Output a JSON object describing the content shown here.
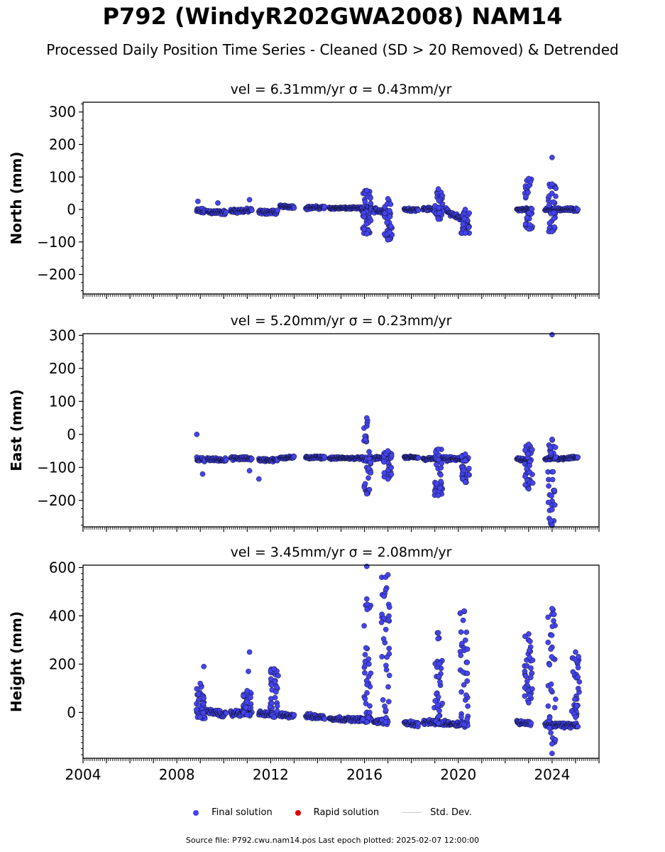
{
  "title": "P792 (WindyR202GWA2008) NAM14",
  "subtitle": "Processed Daily Position Time Series - Cleaned (SD > 20 Removed) & Detrended",
  "legend": [
    {
      "label": "Final solution",
      "color": "#4444ee"
    },
    {
      "label": "Rapid solution",
      "color": "#dd0000"
    },
    {
      "label": "Std. Dev.",
      "color": "#cccccc"
    }
  ],
  "footer": "Source file: P792.cwu.nam14.pos  Last epoch plotted: 2025-02-07 12:00:00",
  "colors": {
    "final": "#4444ee",
    "rapid": "#dd0000",
    "stddev": "#cccccc"
  },
  "chart_data": [
    {
      "type": "scatter",
      "title": "vel = 6.31mm/yr   σ = 0.43mm/yr",
      "ylabel": "North (mm)",
      "xlim": [
        2004,
        2026
      ],
      "ylim": [
        -260,
        330
      ],
      "xticks": [
        "2004",
        "2008",
        "2012",
        "2016",
        "2020",
        "2024"
      ],
      "yticks": [
        "300",
        "200",
        "100",
        "0",
        "−100",
        "−200"
      ],
      "ytick_values": [
        300,
        200,
        100,
        0,
        -100,
        -200
      ],
      "segments": [
        {
          "x": [
            2008.85,
            2009.2
          ],
          "base": [
            -5,
            -5
          ],
          "spread": 10
        },
        {
          "x": [
            2009.3,
            2010.1
          ],
          "base": [
            -7,
            -10
          ],
          "spread": 8
        },
        {
          "x": [
            2010.3,
            2011.2
          ],
          "base": [
            -5,
            -3
          ],
          "spread": 8
        },
        {
          "x": [
            2011.5,
            2012.3
          ],
          "base": [
            -8,
            -8
          ],
          "spread": 8
        },
        {
          "x": [
            2012.4,
            2013.0
          ],
          "base": [
            10,
            8
          ],
          "spread": 5
        },
        {
          "x": [
            2013.5,
            2014.3
          ],
          "base": [
            5,
            6
          ],
          "spread": 6
        },
        {
          "x": [
            2014.5,
            2015.9
          ],
          "base": [
            4,
            4
          ],
          "spread": 4
        },
        {
          "x": [
            2015.9,
            2016.3
          ],
          "base": [
            0,
            0
          ],
          "spread": 15
        },
        {
          "x": [
            2016.4,
            2017.0
          ],
          "base": [
            -3,
            -3
          ],
          "spread": 10
        },
        {
          "x": [
            2017.7,
            2018.3
          ],
          "base": [
            0,
            0
          ],
          "spread": 6
        },
        {
          "x": [
            2018.5,
            2019.5
          ],
          "base": [
            2,
            0
          ],
          "spread": 6
        },
        {
          "x": [
            2019.5,
            2020.4
          ],
          "base": [
            -5,
            -40
          ],
          "spread": 10
        },
        {
          "x": [
            2022.5,
            2023.1
          ],
          "base": [
            0,
            0
          ],
          "spread": 5
        },
        {
          "x": [
            2023.7,
            2025.1
          ],
          "base": [
            0,
            0
          ],
          "spread": 6
        }
      ],
      "columns": [
        {
          "x": 2016.1,
          "min": -75,
          "max": 58
        },
        {
          "x": 2017.0,
          "min": -93,
          "max": 33
        },
        {
          "x": 2019.15,
          "min": -30,
          "max": 63
        },
        {
          "x": 2020.3,
          "min": -73,
          "max": 0
        },
        {
          "x": 2023.0,
          "min": -60,
          "max": 95
        },
        {
          "x": 2024.0,
          "min": -68,
          "max": 78
        }
      ],
      "outliers": [
        {
          "x": 2024.0,
          "y": 160
        },
        {
          "x": 2011.1,
          "y": 30
        },
        {
          "x": 2008.9,
          "y": 25
        },
        {
          "x": 2009.75,
          "y": 20
        },
        {
          "x": 2016.1,
          "y": 58
        }
      ]
    },
    {
      "type": "scatter",
      "title": "vel = 5.20mm/yr   σ = 0.23mm/yr",
      "ylabel": "East (mm)",
      "xlim": [
        2004,
        2026
      ],
      "ylim": [
        -280,
        305
      ],
      "xticks": [
        "2004",
        "2008",
        "2012",
        "2016",
        "2020",
        "2024"
      ],
      "yticks": [
        "300",
        "200",
        "100",
        "0",
        "−100",
        "−200"
      ],
      "ytick_values": [
        300,
        200,
        100,
        0,
        -100,
        -200
      ],
      "segments": [
        {
          "x": [
            2008.85,
            2009.2
          ],
          "base": [
            -75,
            -78
          ],
          "spread": 8
        },
        {
          "x": [
            2009.3,
            2010.1
          ],
          "base": [
            -75,
            -77
          ],
          "spread": 6
        },
        {
          "x": [
            2010.3,
            2011.2
          ],
          "base": [
            -73,
            -73
          ],
          "spread": 6
        },
        {
          "x": [
            2011.5,
            2012.3
          ],
          "base": [
            -77,
            -78
          ],
          "spread": 6
        },
        {
          "x": [
            2012.4,
            2013.0
          ],
          "base": [
            -70,
            -70
          ],
          "spread": 5
        },
        {
          "x": [
            2013.5,
            2014.3
          ],
          "base": [
            -70,
            -70
          ],
          "spread": 5
        },
        {
          "x": [
            2014.5,
            2015.9
          ],
          "base": [
            -72,
            -72
          ],
          "spread": 4
        },
        {
          "x": [
            2015.9,
            2016.3
          ],
          "base": [
            -75,
            -75
          ],
          "spread": 10
        },
        {
          "x": [
            2016.4,
            2017.0
          ],
          "base": [
            -72,
            -72
          ],
          "spread": 6
        },
        {
          "x": [
            2017.7,
            2018.3
          ],
          "base": [
            -70,
            -70
          ],
          "spread": 5
        },
        {
          "x": [
            2018.5,
            2019.5
          ],
          "base": [
            -75,
            -72
          ],
          "spread": 5
        },
        {
          "x": [
            2019.5,
            2020.4
          ],
          "base": [
            -75,
            -75
          ],
          "spread": 8
        },
        {
          "x": [
            2022.5,
            2023.1
          ],
          "base": [
            -75,
            -80
          ],
          "spread": 5
        },
        {
          "x": [
            2023.7,
            2025.1
          ],
          "base": [
            -75,
            -70
          ],
          "spread": 5
        }
      ],
      "columns": [
        {
          "x": 2016.1,
          "min": -180,
          "max": 50
        },
        {
          "x": 2017.0,
          "min": -135,
          "max": -50
        },
        {
          "x": 2019.15,
          "min": -185,
          "max": -45
        },
        {
          "x": 2020.3,
          "min": -145,
          "max": -60
        },
        {
          "x": 2023.0,
          "min": -165,
          "max": -30
        },
        {
          "x": 2024.0,
          "min": -275,
          "max": -15
        }
      ],
      "outliers": [
        {
          "x": 2024.0,
          "y": 302
        },
        {
          "x": 2008.85,
          "y": 0
        },
        {
          "x": 2009.1,
          "y": -120
        },
        {
          "x": 2011.1,
          "y": -110
        },
        {
          "x": 2011.5,
          "y": -135
        },
        {
          "x": 2024.0,
          "y": -228
        }
      ]
    },
    {
      "type": "scatter",
      "title": "vel = 3.45mm/yr   σ = 2.08mm/yr",
      "ylabel": "Height (mm)",
      "xlim": [
        2004,
        2026
      ],
      "ylim": [
        -190,
        610
      ],
      "xticks": [
        "2004",
        "2008",
        "2012",
        "2016",
        "2020",
        "2024"
      ],
      "yticks": [
        "600",
        "400",
        "200",
        "0"
      ],
      "ytick_values": [
        600,
        400,
        200,
        0
      ],
      "segments": [
        {
          "x": [
            2008.85,
            2009.2
          ],
          "base": [
            -5,
            -10
          ],
          "spread": 20
        },
        {
          "x": [
            2009.3,
            2010.1
          ],
          "base": [
            5,
            -10
          ],
          "spread": 15
        },
        {
          "x": [
            2010.3,
            2011.2
          ],
          "base": [
            -5,
            0
          ],
          "spread": 15
        },
        {
          "x": [
            2011.5,
            2012.3
          ],
          "base": [
            -5,
            -10
          ],
          "spread": 12
        },
        {
          "x": [
            2012.4,
            2013.0
          ],
          "base": [
            -12,
            -12
          ],
          "spread": 12
        },
        {
          "x": [
            2013.5,
            2014.3
          ],
          "base": [
            -15,
            -20
          ],
          "spread": 12
        },
        {
          "x": [
            2014.5,
            2015.9
          ],
          "base": [
            -25,
            -30
          ],
          "spread": 10
        },
        {
          "x": [
            2015.9,
            2016.3
          ],
          "base": [
            -30,
            -30
          ],
          "spread": 15
        },
        {
          "x": [
            2016.4,
            2017.0
          ],
          "base": [
            -35,
            -40
          ],
          "spread": 12
        },
        {
          "x": [
            2017.7,
            2018.3
          ],
          "base": [
            -40,
            -50
          ],
          "spread": 12
        },
        {
          "x": [
            2018.5,
            2019.5
          ],
          "base": [
            -40,
            -45
          ],
          "spread": 12
        },
        {
          "x": [
            2019.5,
            2020.4
          ],
          "base": [
            -45,
            -50
          ],
          "spread": 12
        },
        {
          "x": [
            2022.5,
            2023.1
          ],
          "base": [
            -40,
            -45
          ],
          "spread": 12
        },
        {
          "x": [
            2023.7,
            2025.1
          ],
          "base": [
            -50,
            -55
          ],
          "spread": 12
        }
      ],
      "columns": [
        {
          "x": 2009.0,
          "min": -20,
          "max": 120
        },
        {
          "x": 2011.0,
          "min": -10,
          "max": 90
        },
        {
          "x": 2012.15,
          "min": -20,
          "max": 180
        },
        {
          "x": 2016.1,
          "min": -40,
          "max": 470
        },
        {
          "x": 2016.9,
          "min": -40,
          "max": 560
        },
        {
          "x": 2019.15,
          "min": -45,
          "max": 330
        },
        {
          "x": 2020.25,
          "min": -50,
          "max": 420
        },
        {
          "x": 2023.0,
          "min": 40,
          "max": 325
        },
        {
          "x": 2024.0,
          "min": -130,
          "max": 430
        },
        {
          "x": 2025.0,
          "min": -20,
          "max": 250
        }
      ],
      "outliers": [
        {
          "x": 2016.1,
          "y": 605
        },
        {
          "x": 2009.15,
          "y": 190
        },
        {
          "x": 2011.1,
          "y": 250
        },
        {
          "x": 2011.05,
          "y": 170
        },
        {
          "x": 2024.0,
          "y": -170
        },
        {
          "x": 2017.0,
          "y": 570
        }
      ]
    }
  ]
}
